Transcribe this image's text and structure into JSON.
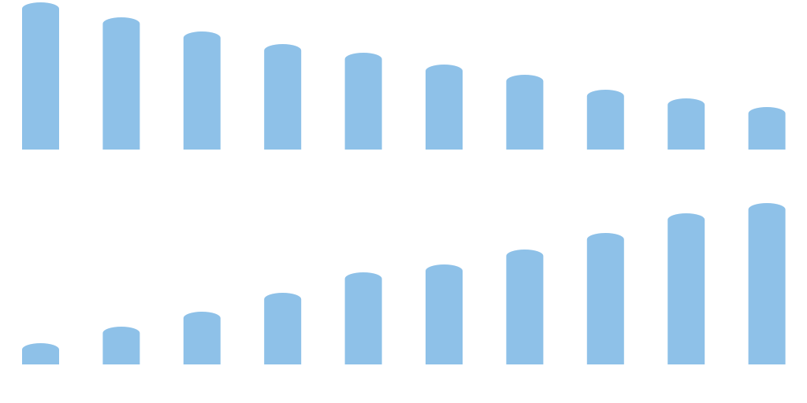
{
  "chart_data": [
    {
      "type": "bar",
      "categories": [
        null,
        null,
        null,
        null,
        null,
        null,
        null,
        null,
        null,
        null
      ],
      "values": [
        187,
        168,
        150,
        134,
        123,
        108,
        95,
        76,
        65,
        54
      ],
      "color": "#8ec1e8",
      "ylim": [
        0,
        190
      ]
    },
    {
      "type": "bar",
      "categories": [
        null,
        null,
        null,
        null,
        null,
        null,
        null,
        null,
        null,
        null
      ],
      "values": [
        27,
        48,
        67,
        91,
        117,
        127,
        146,
        167,
        192,
        205
      ],
      "color": "#8ec1e8",
      "ylim": [
        0,
        210
      ]
    }
  ]
}
